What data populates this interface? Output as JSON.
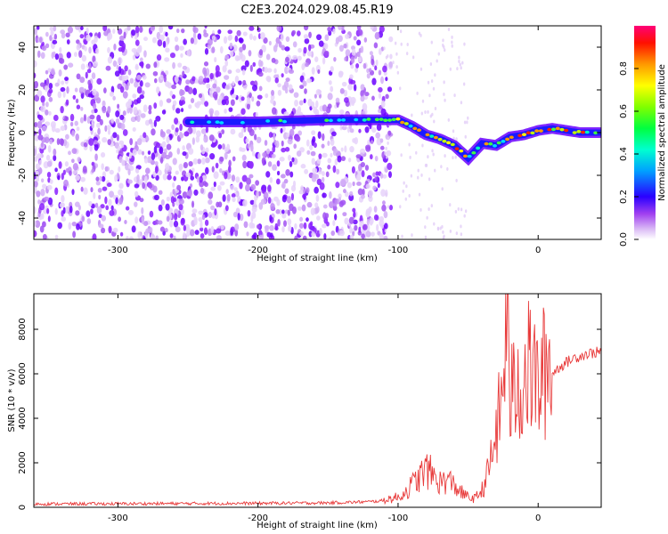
{
  "page_title": "C2E3.2024.029.08.45.R19",
  "colors": {
    "snr_line": "#e83a3a",
    "axis": "#000000",
    "colormap": [
      "#ffffff",
      "#d9b8f5",
      "#b15cf0",
      "#7a00ff",
      "#1a1aff",
      "#00c8ff",
      "#00ff7a",
      "#7aff00",
      "#ffff00",
      "#ff9900",
      "#ff0000",
      "#ff0077"
    ]
  },
  "chart_data": [
    {
      "type": "heatmap",
      "title": "C2E3.2024.029.08.45.R19",
      "xlabel": "Height of straight line (km)",
      "ylabel": "Frequency (Hz)",
      "xlim": [
        -360,
        45
      ],
      "ylim": [
        -50,
        50
      ],
      "xticks": [
        -300,
        -200,
        -100,
        0
      ],
      "yticks": [
        -40,
        -20,
        0,
        20,
        40
      ],
      "colorbar": {
        "label": "Normalized spectral amplitude",
        "range": [
          0,
          1
        ],
        "ticks": [
          0.0,
          0.2,
          0.4,
          0.6,
          0.8
        ]
      },
      "signal_trace": {
        "description_points_x": [
          -250,
          -200,
          -150,
          -120,
          -100,
          -90,
          -80,
          -70,
          -60,
          -50,
          -40,
          -30,
          -20,
          -10,
          0,
          10,
          20,
          30,
          45
        ],
        "frequency_y": [
          5,
          5,
          6,
          6,
          6,
          3,
          -1,
          -3,
          -6,
          -12,
          -5,
          -6,
          -2,
          -1,
          1,
          2,
          1,
          0,
          0
        ]
      }
    },
    {
      "type": "line",
      "xlabel": "Height of straight line (km)",
      "ylabel": "SNR (10 * v/v)",
      "xlim": [
        -360,
        45
      ],
      "ylim": [
        0,
        9600
      ],
      "xticks": [
        -300,
        -200,
        -100,
        0
      ],
      "yticks": [
        0,
        2000,
        4000,
        6000,
        8000
      ],
      "series": [
        {
          "x": [
            -360,
            -300,
            -250,
            -200,
            -150,
            -120,
            -110,
            -100,
            -95,
            -90,
            -85,
            -80,
            -75,
            -70,
            -65,
            -60,
            -55,
            -50,
            -45,
            -40,
            -35,
            -30,
            -25,
            -22,
            -20,
            -15,
            -10,
            -5,
            0,
            5,
            10,
            15,
            20,
            25,
            30,
            35,
            40,
            45
          ],
          "y": [
            150,
            160,
            170,
            180,
            200,
            250,
            300,
            400,
            600,
            900,
            1200,
            1500,
            1300,
            1000,
            1100,
            900,
            600,
            400,
            350,
            700,
            1500,
            3000,
            4500,
            9600,
            4200,
            5000,
            5200,
            5600,
            4800,
            5500,
            6000,
            6300,
            6500,
            6700,
            6800,
            6900,
            6950,
            7000
          ]
        }
      ]
    }
  ]
}
